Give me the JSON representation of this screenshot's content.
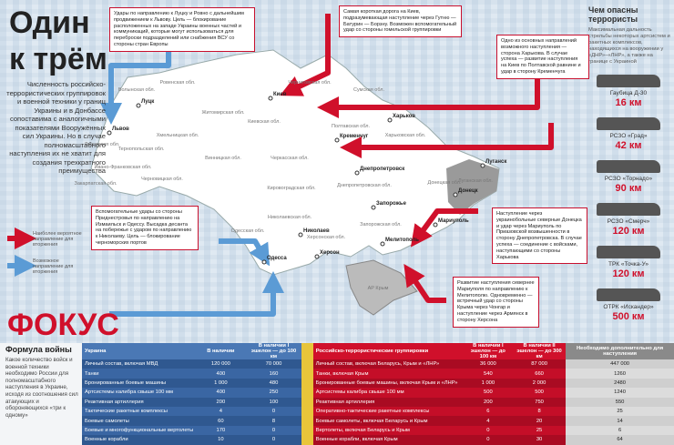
{
  "header": {
    "title_1": "Один",
    "title_2": "к трём",
    "intro": "Численность российско-террористических группировок и военной техники у границ Украины и в Донбассе сопоставима с аналогичными показателями Вооружённых сил Украины. Но в случае полномасштабного наступления их не хватит для создания трехкратного преимущества"
  },
  "legend": [
    {
      "label": "Наиболее вероятное направление для вторжения"
    },
    {
      "label": "Возможное направление для вторжения"
    }
  ],
  "logo": "ФОКУС",
  "map": {
    "regions": [
      "Волынская обл.",
      "Ровенская обл.",
      "Житомирская обл.",
      "Киевская обл.",
      "Черниговская обл.",
      "Сумская обл.",
      "Харьковская обл.",
      "Полтавская обл.",
      "Черкасская обл.",
      "Винницкая обл.",
      "Хмельницкая обл.",
      "Тернопольская обл.",
      "Львовская обл.",
      "Ивано-Франковская обл.",
      "Закарпатская обл.",
      "Черновицкая обл.",
      "Кировоградская обл.",
      "Днепропетровская обл.",
      "Запорожская обл.",
      "Донецкая обл.",
      "Луганская обл.",
      "Николаевская обл.",
      "Херсонская обл.",
      "Одесская обл.",
      "АР Крым"
    ],
    "cities": [
      "Киев",
      "Луцк",
      "Львов",
      "Харьков",
      "Кременчуг",
      "Днепропетровск",
      "Запорожье",
      "Мариуполь",
      "Мелитополь",
      "Николаев",
      "Херсон",
      "Одесса",
      "Донецк",
      "Луганск"
    ],
    "callouts": [
      "Удары по направлению к Луцку и Ровно с дальнейшим продвижением к Львову. Цель — блокирование расположенных на западе Украины военных частей и коммуникаций, которые могут использоваться для переброски подразделений или снабжения ВСУ со стороны стран Европы",
      "Самая короткая дорога на Киев, подразумевающая наступление через Гутню — Батурин — Борзну. Возможен вспомогательный удар со стороны гомельской группировки",
      "Одно из основных направлений возможного наступления — сторона Харькова. В случае успеха — развитие наступления на Киев по Полтавской равнине и удар в сторону Кременчуга",
      "Наступление через украинобольные северные Донецка и удар через Мариуполь по Приазовской возвышенности в сторону Днепропетровска. В случае успеха — соединение с войсками, наступающими со стороны Харькова",
      "Развитие наступления севернее Мариуполя по направлению к Мелитополю. Одновременно — встречный удар со стороны Крыма через Чонгар и наступление через Армянск в сторону Херсона",
      "Вспомогательные удары со стороны Приднестровья по направлению на Измаильск и Одессу. Высадка десанта на побережье с ударом по направлению к Николаеву. Цель — блокирование черноморских портов"
    ]
  },
  "weapons": {
    "title": "Чем опасны террористы",
    "description": "Максимальная дальность стрельбы некоторых артсистем и ракетных комплексов, находящихся на вооружении у «ДНР»–«ЛНР», а также на границе с Украиной",
    "items": [
      {
        "name": "Гаубица Д-30",
        "range": "16 км"
      },
      {
        "name": "РСЗО «Град»",
        "range": "42 км"
      },
      {
        "name": "РСЗО «Торнадо»",
        "range": "90 км"
      },
      {
        "name": "РСЗО «Смерч»",
        "range": "120 км"
      },
      {
        "name": "ТРК «Точка-У»",
        "range": "120 км"
      },
      {
        "name": "ОТРК «Искандер»",
        "range": "500 км"
      }
    ]
  },
  "formula": {
    "title": "Формула войны",
    "text": "Какое количество войск и военной техники необходимо России для полномасштабного наступления в Украине, исходя из соотношения сил атакующих и обороняющихся «три к одному»"
  },
  "table": {
    "header": [
      "Украина",
      "В наличии",
      "В наличии I эшелон — до 100 км",
      "Российско-террористические группировки",
      "В наличии I эшелон — до 100 км",
      "В наличии II эшелон — до 300 км",
      "Необходимо дополнительно для наступления"
    ],
    "rows": [
      [
        "Личный состав, включая МВД",
        "120 000",
        "70 000",
        "Личный состав, включая Беларусь, Крым и «ЛНР»",
        "36 000",
        "87 000",
        "447 000"
      ],
      [
        "Танки",
        "400",
        "160",
        "Танки, включая Крым",
        "540",
        "660",
        "1260"
      ],
      [
        "Бронированные боевые машины",
        "1 000",
        "480",
        "Бронированные боевые машины, включая Крым и «ЛНР»",
        "1 000",
        "2 000",
        "2480"
      ],
      [
        "Артсистемы калибра свыше 100 мм",
        "400",
        "250",
        "Артсистемы калибра свыше 100 мм",
        "500",
        "500",
        "1240"
      ],
      [
        "Реактивная артиллерия",
        "200",
        "100",
        "Реактивная артиллерия",
        "200",
        "750",
        "550"
      ],
      [
        "Тактические ракетные комплексы",
        "4",
        "0",
        "Оперативно-тактические ракетные комплексы",
        "6",
        "8",
        "25"
      ],
      [
        "Боевые самолеты",
        "60",
        "8",
        "Боевые самолеты, включая Беларусь и Крым",
        "4",
        "20",
        "14"
      ],
      [
        "Боевые и многофункциональные вертолеты",
        "170",
        "0",
        "Вертолеты, включая Беларусь и Крым",
        "0",
        "25",
        "6"
      ],
      [
        "Военные корабли",
        "10",
        "0",
        "Военные корабли, включая Крым",
        "0",
        "30",
        "64"
      ]
    ]
  }
}
